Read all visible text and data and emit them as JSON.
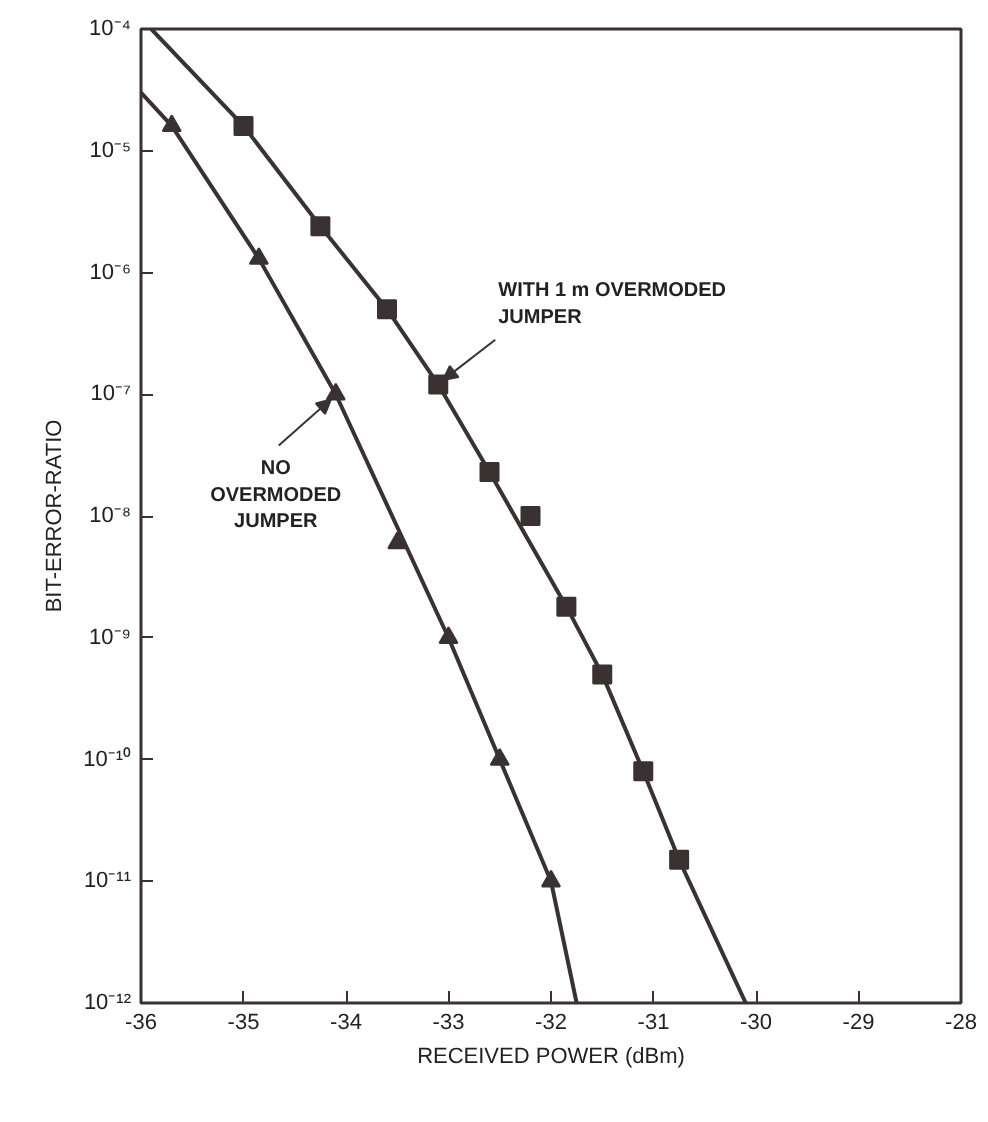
{
  "chart_data": {
    "type": "scatter",
    "xlabel": "RECEIVED POWER (dBm)",
    "ylabel": "BIT-ERROR-RATIO",
    "log": "y",
    "grid": false,
    "xlim": [
      -36,
      -28
    ],
    "xticks": [
      -36,
      -35,
      -34,
      -33,
      -32,
      -31,
      -30,
      -29,
      -28
    ],
    "ylim": [
      1e-12,
      0.0001
    ],
    "yticks": [
      {
        "value": 0.0001,
        "label": "10⁻⁴"
      },
      {
        "value": 1e-05,
        "label": "10⁻⁵"
      },
      {
        "value": 1e-06,
        "label": "10⁻⁶"
      },
      {
        "value": 1e-07,
        "label": "10⁻⁷"
      },
      {
        "value": 1e-08,
        "label": "10⁻⁸"
      },
      {
        "value": 1e-09,
        "label": "10⁻⁹"
      },
      {
        "value": 1e-10,
        "label": "10⁻¹⁰"
      },
      {
        "value": 1e-11,
        "label": "10⁻¹¹"
      },
      {
        "value": 1e-12,
        "label": "10⁻¹²"
      }
    ],
    "series": [
      {
        "marker": "square",
        "color": "#3a3232",
        "x": [
          -35.0,
          -34.25,
          -33.6,
          -33.1,
          -32.6,
          -32.2,
          -31.85,
          -31.5,
          -31.1,
          -30.75
        ],
        "values": [
          1.6e-05,
          2.4e-06,
          5e-07,
          1.2e-07,
          2.3e-08,
          1e-08,
          1.8e-09,
          5e-10,
          8e-11,
          1.5e-11
        ]
      },
      {
        "marker": "triangle",
        "color": "#3a3232",
        "x": [
          -35.7,
          -34.85,
          -34.1,
          -33.5,
          -33.0,
          -32.5,
          -32.0
        ],
        "values": [
          1.6e-05,
          1.3e-06,
          1e-07,
          6e-09,
          1e-09,
          1e-10,
          1e-11
        ]
      },
      {
        "type": "line",
        "line_style": "solid",
        "color": "#3a3232",
        "x": [
          -35.9,
          -35.0,
          -34.25,
          -33.6,
          -33.1,
          -32.6,
          -31.85,
          -31.5,
          -31.1,
          -30.75,
          -30.1
        ],
        "values": [
          0.0001,
          1.6e-05,
          2.4e-06,
          5e-07,
          1.2e-07,
          2.3e-08,
          1.8e-09,
          5e-10,
          8e-11,
          1.5e-11,
          1e-12
        ]
      },
      {
        "type": "line",
        "line_style": "solid",
        "color": "#3a3232",
        "x": [
          -36,
          -35.7,
          -34.85,
          -34.1,
          -33.0,
          -32.5,
          -32.0,
          -31.75
        ],
        "values": [
          3e-05,
          1.6e-05,
          1.3e-06,
          1e-07,
          1e-09,
          1e-10,
          1e-11,
          1e-12
        ]
      }
    ],
    "annotations": [
      {
        "text": "WITH 1 m OVERMODED\nJUMPER",
        "x": -33.1,
        "y": 1.2e-07
      },
      {
        "text": "NO\nOVERMODED\nJUMPER",
        "x": -34.1,
        "y": 1e-07
      }
    ]
  }
}
